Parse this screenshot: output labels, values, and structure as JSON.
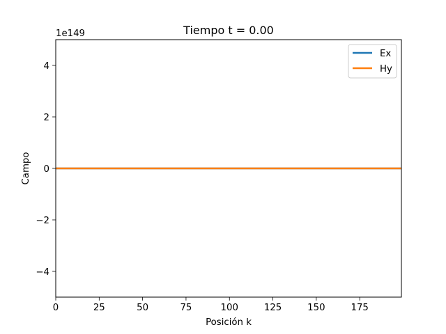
{
  "chart_data": {
    "type": "line",
    "title": "Tiempo t = 0.00",
    "xlabel": "Posición k",
    "ylabel": "Campo",
    "y_offset_text": "1e149",
    "xlim": [
      0,
      199
    ],
    "ylim": [
      -5,
      5
    ],
    "y_scale_exponent": 149,
    "x_ticks": [
      0,
      25,
      50,
      75,
      100,
      125,
      150,
      175
    ],
    "x_tick_labels": [
      "0",
      "25",
      "50",
      "75",
      "100",
      "125",
      "150",
      "175"
    ],
    "y_ticks": [
      -4,
      -2,
      0,
      2,
      4
    ],
    "y_tick_labels": [
      "−4",
      "−2",
      "0",
      "2",
      "4"
    ],
    "grid": false,
    "legend_position": "top-right",
    "series": [
      {
        "name": "Ex",
        "color": "#1f77b4",
        "x": [
          0,
          199
        ],
        "values": [
          0,
          0
        ]
      },
      {
        "name": "Hy",
        "color": "#ff7f0e",
        "x": [
          0,
          199
        ],
        "values": [
          0,
          0
        ]
      }
    ]
  }
}
